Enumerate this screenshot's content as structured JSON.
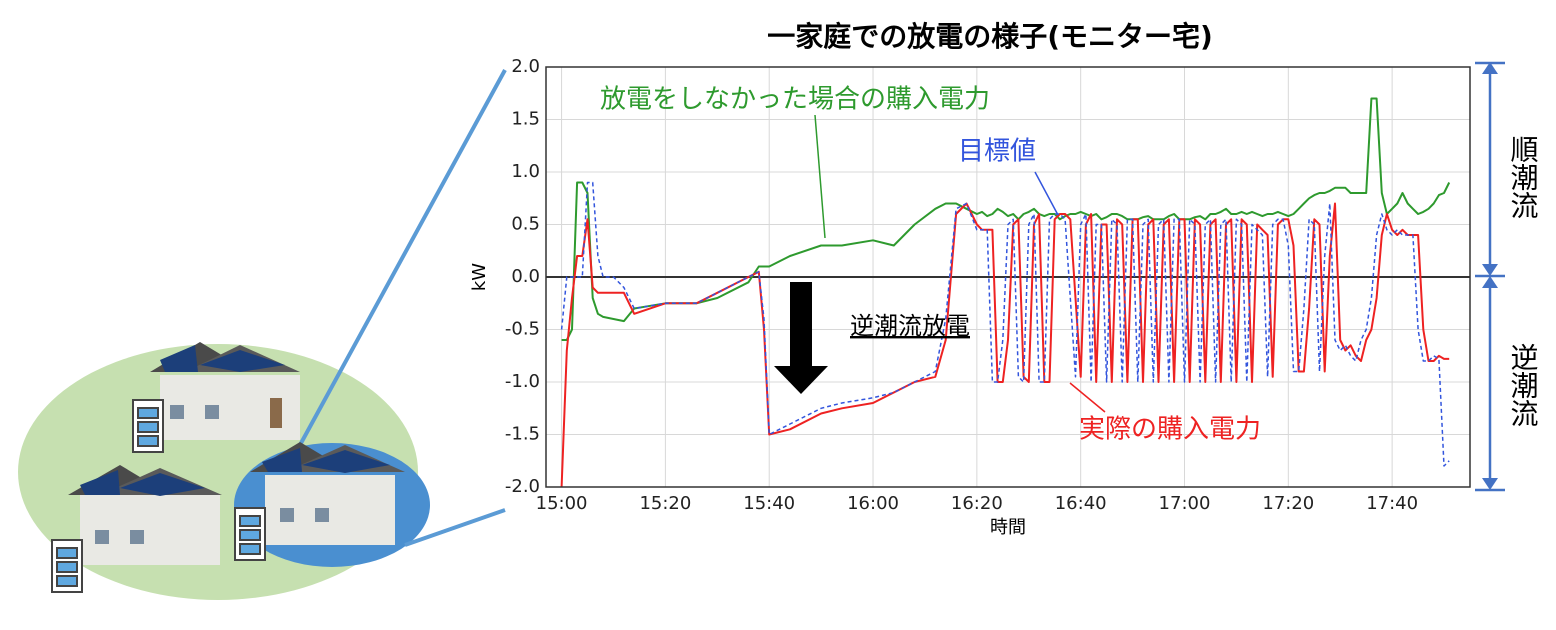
{
  "chart_data": {
    "type": "line",
    "title": "一家庭での放電の様子(モニター宅)",
    "xlabel": "時間",
    "ylabel": "kW",
    "annotation": "逆潮流放電",
    "forward_label": "順潮流",
    "reverse_label": "逆潮流",
    "xlim": [
      "14:57",
      "17:55"
    ],
    "xticks": [
      "15:00",
      "15:20",
      "15:40",
      "16:00",
      "16:20",
      "16:40",
      "17:00",
      "17:20",
      "17:40"
    ],
    "ylim": [
      -2.0,
      2.0
    ],
    "yticks": [
      {
        "value": 2.0,
        "label": "2.0"
      },
      1.5,
      {
        "value": 1.0,
        "label": "1.0"
      },
      0.5,
      {
        "value": 0.0,
        "label": "0.0"
      },
      -0.5,
      {
        "value": -1.0,
        "label": "-1.0"
      },
      -1.5,
      {
        "value": -2.0,
        "label": "-2.0"
      }
    ],
    "grid": true,
    "x": [
      "15:00",
      "15:01",
      "15:02",
      "15:03",
      "15:04",
      "15:05",
      "15:06",
      "15:07",
      "15:08",
      "15:10",
      "15:12",
      "15:14",
      "15:20",
      "15:26",
      "15:30",
      "15:36",
      "15:38",
      "15:39",
      "15:40",
      "15:44",
      "15:50",
      "15:54",
      "16:00",
      "16:04",
      "16:08",
      "16:12",
      "16:14",
      "16:16",
      "16:18",
      "16:20",
      "16:21",
      "16:22",
      "16:23",
      "16:24",
      "16:25",
      "16:26",
      "16:27",
      "16:28",
      "16:29",
      "16:30",
      "16:31",
      "16:32",
      "16:33",
      "16:34",
      "16:35",
      "16:36",
      "16:37",
      "16:38",
      "16:39",
      "16:40",
      "16:41",
      "16:42",
      "16:43",
      "16:44",
      "16:45",
      "16:46",
      "16:47",
      "16:48",
      "16:49",
      "16:50",
      "16:51",
      "16:52",
      "16:53",
      "16:54",
      "16:55",
      "16:56",
      "16:57",
      "16:58",
      "16:59",
      "17:00",
      "17:01",
      "17:02",
      "17:03",
      "17:04",
      "17:05",
      "17:06",
      "17:07",
      "17:08",
      "17:09",
      "17:10",
      "17:11",
      "17:12",
      "17:13",
      "17:14",
      "17:15",
      "17:16",
      "17:17",
      "17:18",
      "17:19",
      "17:20",
      "17:21",
      "17:22",
      "17:23",
      "17:24",
      "17:25",
      "17:26",
      "17:27",
      "17:28",
      "17:29",
      "17:30",
      "17:31",
      "17:32",
      "17:33",
      "17:34",
      "17:35",
      "17:36",
      "17:37",
      "17:38",
      "17:39",
      "17:40",
      "17:41",
      "17:42",
      "17:43",
      "17:44",
      "17:45",
      "17:46",
      "17:47",
      "17:48",
      "17:49",
      "17:50",
      "17:51"
    ],
    "series": [
      {
        "name": "放電をしなかった場合の購入電力",
        "color": "#2e9a2e",
        "dash": false,
        "values": [
          -0.6,
          -0.6,
          -0.5,
          0.9,
          0.9,
          0.8,
          -0.2,
          -0.35,
          -0.38,
          -0.4,
          -0.42,
          -0.3,
          -0.25,
          -0.25,
          -0.2,
          -0.05,
          0.1,
          0.1,
          0.1,
          0.2,
          0.3,
          0.3,
          0.35,
          0.3,
          0.5,
          0.65,
          0.7,
          0.7,
          0.65,
          0.6,
          0.62,
          0.58,
          0.6,
          0.65,
          0.62,
          0.58,
          0.6,
          0.55,
          0.6,
          0.62,
          0.65,
          0.6,
          0.58,
          0.6,
          0.6,
          0.55,
          0.58,
          0.6,
          0.6,
          0.62,
          0.6,
          0.58,
          0.6,
          0.55,
          0.57,
          0.6,
          0.6,
          0.58,
          0.55,
          0.55,
          0.55,
          0.57,
          0.58,
          0.55,
          0.55,
          0.55,
          0.58,
          0.6,
          0.55,
          0.55,
          0.55,
          0.57,
          0.58,
          0.55,
          0.6,
          0.6,
          0.62,
          0.65,
          0.6,
          0.6,
          0.62,
          0.6,
          0.62,
          0.6,
          0.58,
          0.6,
          0.6,
          0.62,
          0.6,
          0.58,
          0.6,
          0.65,
          0.7,
          0.75,
          0.78,
          0.8,
          0.8,
          0.82,
          0.85,
          0.85,
          0.85,
          0.8,
          0.8,
          0.8,
          0.8,
          1.7,
          1.7,
          0.8,
          0.6,
          0.65,
          0.7,
          0.8,
          0.7,
          0.65,
          0.6,
          0.62,
          0.65,
          0.7,
          0.78,
          0.8,
          0.9
        ]
      },
      {
        "name": "目標値",
        "color": "#3355dd",
        "dash": true,
        "values": [
          -0.5,
          0.0,
          0.0,
          0.0,
          0.0,
          0.9,
          0.9,
          0.2,
          0.0,
          0.0,
          -0.1,
          -0.3,
          -0.25,
          -0.25,
          -0.15,
          0.0,
          0.05,
          -0.4,
          -1.5,
          -1.4,
          -1.25,
          -1.2,
          -1.15,
          -1.1,
          -1.0,
          -0.9,
          -0.4,
          0.65,
          0.7,
          0.45,
          0.45,
          0.45,
          -1.0,
          -1.0,
          -0.6,
          0.5,
          0.55,
          -0.95,
          -1.0,
          0.5,
          0.6,
          -1.0,
          -1.0,
          0.55,
          0.6,
          0.6,
          0.55,
          -0.2,
          -0.95,
          0.5,
          0.6,
          -1.0,
          0.5,
          0.5,
          -1.0,
          0.55,
          0.5,
          -1.0,
          0.55,
          0.55,
          -1.0,
          0.5,
          0.55,
          -1.0,
          0.5,
          0.55,
          -1.0,
          0.55,
          0.55,
          -1.0,
          0.55,
          0.5,
          -1.0,
          0.5,
          0.55,
          -1.0,
          0.5,
          0.55,
          -1.0,
          0.55,
          0.5,
          -1.0,
          0.5,
          0.45,
          0.4,
          -0.95,
          0.5,
          0.55,
          0.55,
          0.3,
          -0.9,
          -0.9,
          -0.3,
          0.55,
          0.5,
          -0.9,
          0.2,
          0.7,
          -0.6,
          -0.7,
          -0.65,
          -0.75,
          -0.8,
          -0.6,
          -0.5,
          -0.2,
          0.4,
          0.6,
          0.45,
          0.4,
          0.45,
          0.4,
          0.4,
          0.4,
          -0.5,
          -0.8,
          -0.8,
          -0.75,
          -0.78,
          -1.8,
          -1.75
        ]
      },
      {
        "name": "実際の購入電力",
        "color": "#ee2222",
        "dash": false,
        "values": [
          -2.0,
          -0.7,
          -0.2,
          0.2,
          0.2,
          0.55,
          -0.1,
          -0.15,
          -0.15,
          -0.15,
          -0.15,
          -0.35,
          -0.25,
          -0.25,
          -0.15,
          0.0,
          0.05,
          -0.5,
          -1.5,
          -1.45,
          -1.3,
          -1.25,
          -1.2,
          -1.1,
          -1.0,
          -0.95,
          -0.6,
          0.6,
          0.7,
          0.5,
          0.45,
          0.45,
          0.45,
          -1.0,
          -1.0,
          -0.6,
          0.5,
          0.55,
          -0.95,
          -1.0,
          0.5,
          0.6,
          -1.0,
          -1.0,
          0.55,
          0.6,
          0.6,
          0.55,
          -0.2,
          -0.95,
          0.5,
          0.6,
          -1.0,
          0.5,
          0.5,
          -1.0,
          0.55,
          0.5,
          -1.0,
          0.55,
          0.55,
          -1.0,
          0.5,
          0.55,
          -1.0,
          0.5,
          0.55,
          -1.0,
          0.55,
          0.55,
          -1.0,
          0.55,
          0.5,
          -1.0,
          0.5,
          0.55,
          -1.0,
          0.5,
          0.55,
          -1.0,
          0.55,
          0.5,
          -1.0,
          0.5,
          0.45,
          0.4,
          -0.95,
          0.5,
          0.55,
          0.55,
          0.3,
          -0.9,
          -0.9,
          -0.3,
          0.55,
          0.5,
          -0.9,
          0.2,
          0.7,
          -0.6,
          -0.7,
          -0.65,
          -0.75,
          -0.8,
          -0.6,
          -0.5,
          -0.2,
          0.4,
          0.6,
          0.45,
          0.4,
          0.45,
          0.4,
          0.4,
          0.4,
          -0.5,
          -0.8,
          -0.8,
          -0.75,
          -0.78,
          -0.78
        ]
      }
    ]
  }
}
